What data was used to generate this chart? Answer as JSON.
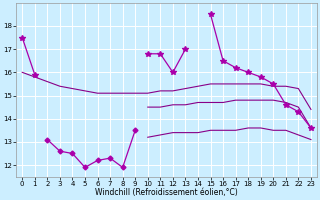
{
  "x": [
    0,
    1,
    2,
    3,
    4,
    5,
    6,
    7,
    8,
    9,
    10,
    11,
    12,
    13,
    14,
    15,
    16,
    17,
    18,
    19,
    20,
    21,
    22,
    23
  ],
  "y_top": [
    17.5,
    15.9,
    null,
    null,
    null,
    null,
    null,
    null,
    null,
    null,
    16.8,
    16.8,
    16.0,
    17.0,
    null,
    18.5,
    16.5,
    16.2,
    16.0,
    15.8,
    15.5,
    14.6,
    14.3,
    13.6
  ],
  "y_bot": [
    null,
    null,
    13.1,
    12.6,
    12.5,
    11.9,
    12.2,
    12.3,
    11.9,
    13.5,
    null,
    null,
    null,
    null,
    null,
    null,
    null,
    null,
    null,
    null,
    null,
    null,
    null,
    null
  ],
  "y_band_upper": [
    16.0,
    15.8,
    15.6,
    15.4,
    15.3,
    15.2,
    15.1,
    15.1,
    15.1,
    15.1,
    15.1,
    15.2,
    15.2,
    15.3,
    15.4,
    15.5,
    15.5,
    15.5,
    15.5,
    15.5,
    15.4,
    15.4,
    15.3,
    14.4
  ],
  "y_band_lower": [
    null,
    null,
    null,
    null,
    null,
    null,
    null,
    null,
    null,
    null,
    14.5,
    14.5,
    14.6,
    14.6,
    14.7,
    14.7,
    14.7,
    14.8,
    14.8,
    14.8,
    14.8,
    14.7,
    14.5,
    13.6
  ],
  "y_band3": [
    null,
    null,
    null,
    null,
    null,
    null,
    null,
    null,
    null,
    null,
    13.2,
    13.3,
    13.4,
    13.4,
    13.4,
    13.5,
    13.5,
    13.5,
    13.6,
    13.6,
    13.5,
    13.5,
    13.3,
    13.1
  ],
  "bg_color": "#cceeff",
  "grid_color": "#ffffff",
  "line_color_marker": "#aa00aa",
  "line_color_smooth": "#880088",
  "xlabel": "Windchill (Refroidissement éolien,°C)",
  "ylim": [
    11.5,
    19.0
  ],
  "xlim": [
    -0.5,
    23.5
  ],
  "yticks": [
    12,
    13,
    14,
    15,
    16,
    17,
    18
  ],
  "xticks": [
    0,
    1,
    2,
    3,
    4,
    5,
    6,
    7,
    8,
    9,
    10,
    11,
    12,
    13,
    14,
    15,
    16,
    17,
    18,
    19,
    20,
    21,
    22,
    23
  ],
  "figsize": [
    3.2,
    2.0
  ],
  "dpi": 100
}
